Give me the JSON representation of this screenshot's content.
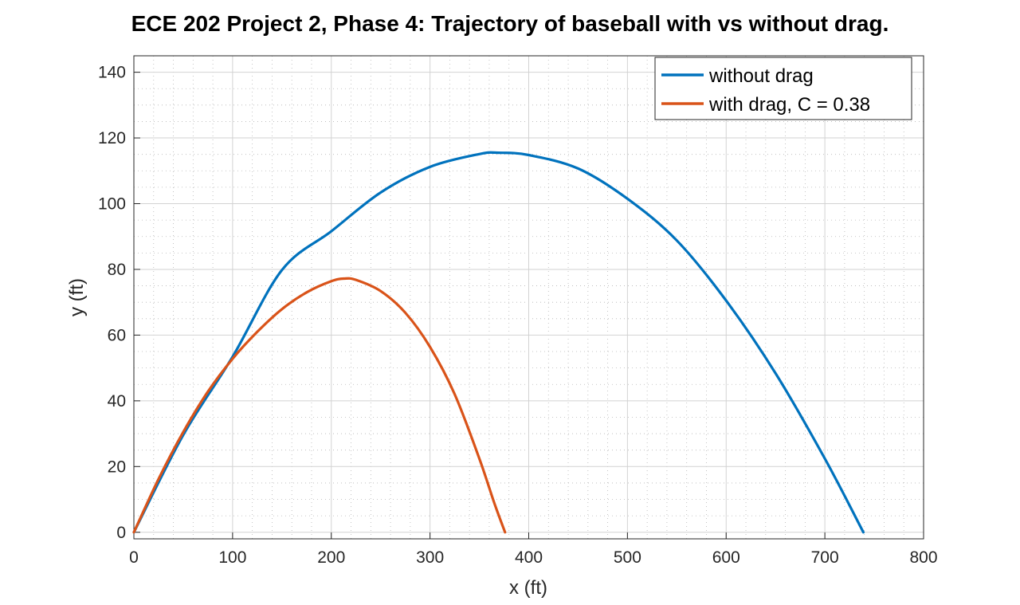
{
  "chart_data": {
    "type": "line",
    "title": "ECE 202 Project 2, Phase 4: Trajectory of baseball with vs without drag.",
    "xlabel": "x (ft)",
    "ylabel": "y (ft)",
    "xlim": [
      0,
      800
    ],
    "ylim": [
      -2,
      145
    ],
    "xticks": [
      0,
      100,
      200,
      300,
      400,
      500,
      600,
      700,
      800
    ],
    "yticks": [
      0,
      20,
      40,
      60,
      80,
      100,
      120,
      140
    ],
    "grid": true,
    "minor_grid": true,
    "legend_position": "top-right",
    "series": [
      {
        "name": "without drag",
        "color": "#0072BD",
        "x": [
          0,
          50,
          100,
          150,
          200,
          250,
          300,
          350,
          369,
          400,
          450,
          500,
          550,
          600,
          650,
          700,
          739
        ],
        "y": [
          0,
          29.6,
          53.4,
          79.8,
          91.6,
          103.4,
          111.2,
          115.1,
          115.5,
          114.8,
          110.7,
          101.5,
          88.8,
          70.5,
          48.4,
          22.4,
          0
        ]
      },
      {
        "name": "with drag, C = 0.38",
        "color": "#D95319",
        "x": [
          0,
          25,
          50,
          75,
          100,
          125,
          150,
          175,
          200,
          213,
          225,
          250,
          275,
          300,
          325,
          350,
          365,
          376
        ],
        "y": [
          0,
          16.2,
          30.5,
          42.8,
          52.8,
          61.0,
          67.9,
          73.0,
          76.4,
          77.2,
          76.8,
          73.4,
          66.8,
          56.4,
          42.0,
          22.4,
          9.0,
          0
        ]
      }
    ]
  }
}
